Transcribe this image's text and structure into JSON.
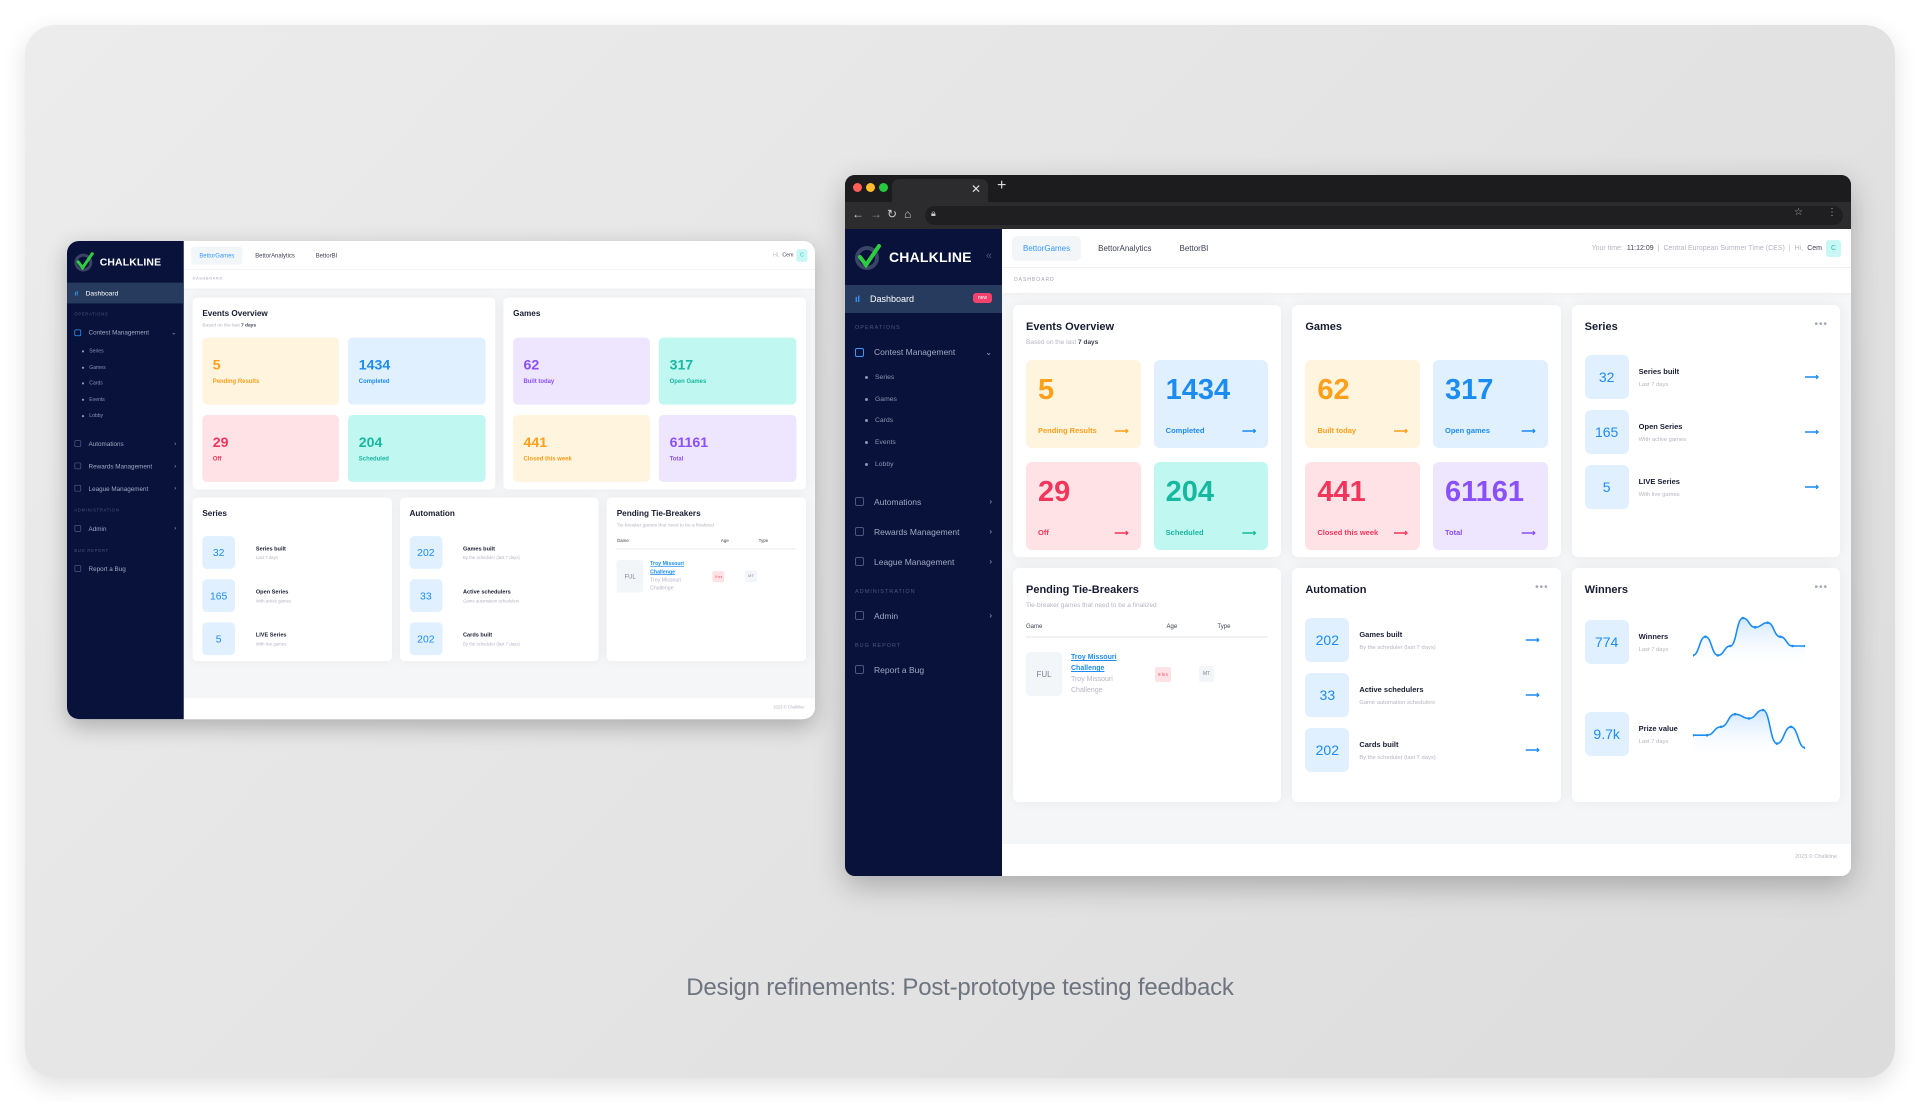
{
  "caption": "Design refinements: Post-prototype testing feedback",
  "colors": {
    "orange": {
      "bg": "#fff4de",
      "fg": "#ff9f1a"
    },
    "blue": {
      "bg": "#e1f0ff",
      "fg": "#1b8cf2"
    },
    "red": {
      "bg": "#ffe2e5",
      "fg": "#f2355b"
    },
    "teal": {
      "bg": "#c1f7f1",
      "fg": "#17b8a0"
    },
    "purple": {
      "bg": "#eee5ff",
      "fg": "#8950fc"
    },
    "sidebar": "#08123a",
    "accent": "#3699ff"
  },
  "v1": {
    "brand": "CHALKLINE",
    "tabs": [
      "BettorGames",
      "BettorAnalytics",
      "BettorBI"
    ],
    "greeting": "Hi,",
    "user": "Cem",
    "avatar": "C",
    "breadcrumb": "DASHBOARD",
    "footer": "2023 © Chalkline",
    "sidebar": {
      "dashboard": "Dashboard",
      "sections": [
        {
          "label": "OPERATIONS",
          "items": [
            {
              "label": "Contest Management",
              "icon": "sliders-icon",
              "expanded": true,
              "children": [
                "Series",
                "Games",
                "Cards",
                "Events",
                "Lobby"
              ]
            },
            {
              "label": "Automations",
              "icon": "robot-icon"
            },
            {
              "label": "Rewards Management",
              "icon": "trophy-icon"
            },
            {
              "label": "League Management",
              "icon": "layers-icon"
            }
          ]
        },
        {
          "label": "ADMINISTRATION",
          "items": [
            {
              "label": "Admin",
              "icon": "gear-icon"
            }
          ]
        },
        {
          "label": "BUG REPORT",
          "items": [
            {
              "label": "Report a Bug",
              "icon": "bug-icon"
            }
          ]
        }
      ]
    },
    "events": {
      "title": "Events Overview",
      "sub_prefix": "Based on the last",
      "sub_bold": "7 days",
      "tiles": [
        {
          "value": "5",
          "label": "Pending Results",
          "color": "orange"
        },
        {
          "value": "1434",
          "label": "Completed",
          "color": "blue"
        },
        {
          "value": "29",
          "label": "Off",
          "color": "red"
        },
        {
          "value": "204",
          "label": "Scheduled",
          "color": "teal"
        }
      ]
    },
    "games": {
      "title": "Games",
      "tiles": [
        {
          "value": "62",
          "label": "Built today",
          "color": "purple"
        },
        {
          "value": "317",
          "label": "Open Games",
          "color": "teal"
        },
        {
          "value": "441",
          "label": "Closed this week",
          "color": "orange"
        },
        {
          "value": "61161",
          "label": "Total",
          "color": "purple"
        }
      ]
    },
    "series": {
      "title": "Series",
      "items": [
        {
          "value": "32",
          "label": "Series built",
          "sub": "Last 7 days"
        },
        {
          "value": "165",
          "label": "Open Series",
          "sub": "With active games"
        },
        {
          "value": "5",
          "label": "LIVE Series",
          "sub": "With live games"
        }
      ]
    },
    "automation": {
      "title": "Automation",
      "items": [
        {
          "value": "202",
          "label": "Games built",
          "sub": "By the scheduler (last 7 days)"
        },
        {
          "value": "33",
          "label": "Active schedulers",
          "sub": "Game automation schedulers"
        },
        {
          "value": "202",
          "label": "Cards built",
          "sub": "By the scheduler (last 7 days)"
        }
      ]
    },
    "tiebreakers": {
      "title": "Pending Tie-Breakers",
      "subtitle": "Tie-breaker games that need to be a finalized",
      "columns": [
        "Game",
        "Age",
        "Type"
      ],
      "rows": [
        {
          "code": "FUL",
          "link": "Troy Missouri Challenge",
          "name": "Troy Missouri Challenge",
          "age": "9 hrs",
          "type": "MT"
        }
      ]
    }
  },
  "v2": {
    "brand": "CHALKLINE",
    "tabs": [
      "BettorGames",
      "BettorAnalytics",
      "BettorBI"
    ],
    "time_label": "Your time:",
    "time": "11:12:09",
    "timezone": "Central European Summer Time (CES)",
    "greeting": "Hi,",
    "user": "Cem",
    "avatar": "C",
    "breadcrumb": "DASHBOARD",
    "footer": "2023 © Chalkline",
    "sidebar": {
      "dashboard": "Dashboard",
      "badge": "new",
      "sections": [
        {
          "label": "OPERATIONS",
          "items": [
            {
              "label": "Contest Management",
              "icon": "sliders-icon",
              "expanded": true,
              "children": [
                "Series",
                "Games",
                "Cards",
                "Events",
                "Lobby"
              ]
            },
            {
              "label": "Automations",
              "icon": "robot-icon"
            },
            {
              "label": "Rewards Management",
              "icon": "trophy-icon"
            },
            {
              "label": "League Management",
              "icon": "layers-icon"
            }
          ]
        },
        {
          "label": "ADMINISTRATION",
          "items": [
            {
              "label": "Admin",
              "icon": "gear-icon"
            }
          ]
        },
        {
          "label": "BUG REPORT",
          "items": [
            {
              "label": "Report a Bug",
              "icon": "bug-icon"
            }
          ]
        }
      ]
    },
    "events": {
      "title": "Events Overview",
      "sub_prefix": "Based on the last",
      "sub_bold": "7 days",
      "tiles": [
        {
          "value": "5",
          "label": "Pending Results",
          "color": "orange"
        },
        {
          "value": "1434",
          "label": "Completed",
          "color": "blue"
        },
        {
          "value": "29",
          "label": "Off",
          "color": "red"
        },
        {
          "value": "204",
          "label": "Scheduled",
          "color": "teal"
        }
      ]
    },
    "games": {
      "title": "Games",
      "tiles": [
        {
          "value": "62",
          "label": "Built today",
          "color": "orange"
        },
        {
          "value": "317",
          "label": "Open games",
          "color": "blue"
        },
        {
          "value": "441",
          "label": "Closed this week",
          "color": "red"
        },
        {
          "value": "61161",
          "label": "Total",
          "color": "purple"
        }
      ]
    },
    "series": {
      "title": "Series",
      "items": [
        {
          "value": "32",
          "label": "Series built",
          "sub": "Last 7 days"
        },
        {
          "value": "165",
          "label": "Open Series",
          "sub": "With active games"
        },
        {
          "value": "5",
          "label": "LIVE Series",
          "sub": "With live games"
        }
      ]
    },
    "tiebreakers": {
      "title": "Pending Tie-Breakers",
      "subtitle": "Tie-breaker games that need to be a finalized",
      "columns": [
        "Game",
        "Age",
        "Type"
      ],
      "rows": [
        {
          "code": "FUL",
          "link": "Troy Missouri Challenge",
          "name": "Troy Missouri Challenge",
          "age": "9 hrs",
          "type": "MT"
        }
      ]
    },
    "automation": {
      "title": "Automation",
      "items": [
        {
          "value": "202",
          "label": "Games built",
          "sub": "By the scheduler (last 7 days)"
        },
        {
          "value": "33",
          "label": "Active schedulers",
          "sub": "Game automation schedulers"
        },
        {
          "value": "202",
          "label": "Cards built",
          "sub": "By the scheduler (last 7 days)"
        }
      ]
    },
    "winners": {
      "title": "Winners",
      "items": [
        {
          "value": "774",
          "label": "Winners",
          "sub": "Last 7 days",
          "trend": [
            1,
            5,
            1,
            3,
            9,
            7,
            8,
            5,
            3,
            3
          ]
        },
        {
          "value": "9.7k",
          "label": "Prize value",
          "sub": "Last 7 days",
          "trend": [
            4,
            4,
            6,
            9,
            8,
            10,
            2,
            6,
            1
          ]
        }
      ]
    }
  }
}
